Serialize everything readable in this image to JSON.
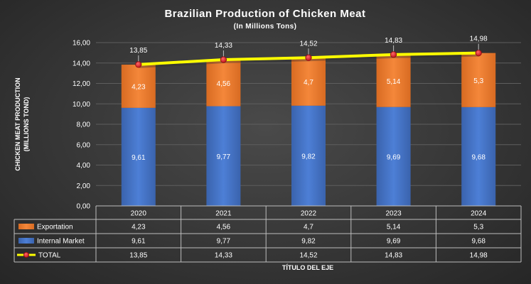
{
  "chart_data": {
    "type": "bar",
    "stacked": true,
    "title": "Brazilian Production of Chicken Meat",
    "subtitle": "(In Millions Tons)",
    "ylabel_line1": "CHICKEN MEAT PRODUCTION",
    "ylabel_line2": "(MILLIONS TOND)",
    "xlabel": "TÍTULO DEL EJE",
    "ylim": [
      0,
      16
    ],
    "ytick_labels": [
      "0,00",
      "2,00",
      "4,00",
      "6,00",
      "8,00",
      "10,00",
      "12,00",
      "14,00",
      "16,00"
    ],
    "categories": [
      "2020",
      "2021",
      "2022",
      "2023",
      "2024"
    ],
    "series": [
      {
        "name": "Internal Market",
        "type": "bar",
        "color": "#4472c4",
        "values": [
          9.61,
          9.77,
          9.82,
          9.69,
          9.68
        ],
        "labels": [
          "9,61",
          "9,77",
          "9,82",
          "9,69",
          "9,68"
        ]
      },
      {
        "name": "Exportation",
        "type": "bar",
        "color": "#ed7d31",
        "values": [
          4.23,
          4.56,
          4.7,
          5.14,
          5.3
        ],
        "labels": [
          "4,23",
          "4,56",
          "4,7",
          "5,14",
          "5,3"
        ]
      },
      {
        "name": "TOTAL",
        "type": "line",
        "color": "#ffff00",
        "marker_color": "#e8232a",
        "values": [
          13.85,
          14.33,
          14.52,
          14.83,
          14.98
        ],
        "labels": [
          "13,85",
          "14,33",
          "14,52",
          "14,83",
          "14,98"
        ]
      }
    ],
    "data_table": {
      "rows": [
        {
          "name": "Exportation",
          "legend": "bar",
          "color": "#ed7d31",
          "cells": [
            "4,23",
            "4,56",
            "4,7",
            "5,14",
            "5,3"
          ]
        },
        {
          "name": "Internal Market",
          "legend": "bar",
          "color": "#4472c4",
          "cells": [
            "9,61",
            "9,77",
            "9,82",
            "9,69",
            "9,68"
          ]
        },
        {
          "name": "TOTAL",
          "legend": "line",
          "color": "#ffff00",
          "cells": [
            "13,85",
            "14,33",
            "14,52",
            "14,83",
            "14,98"
          ]
        }
      ]
    }
  }
}
